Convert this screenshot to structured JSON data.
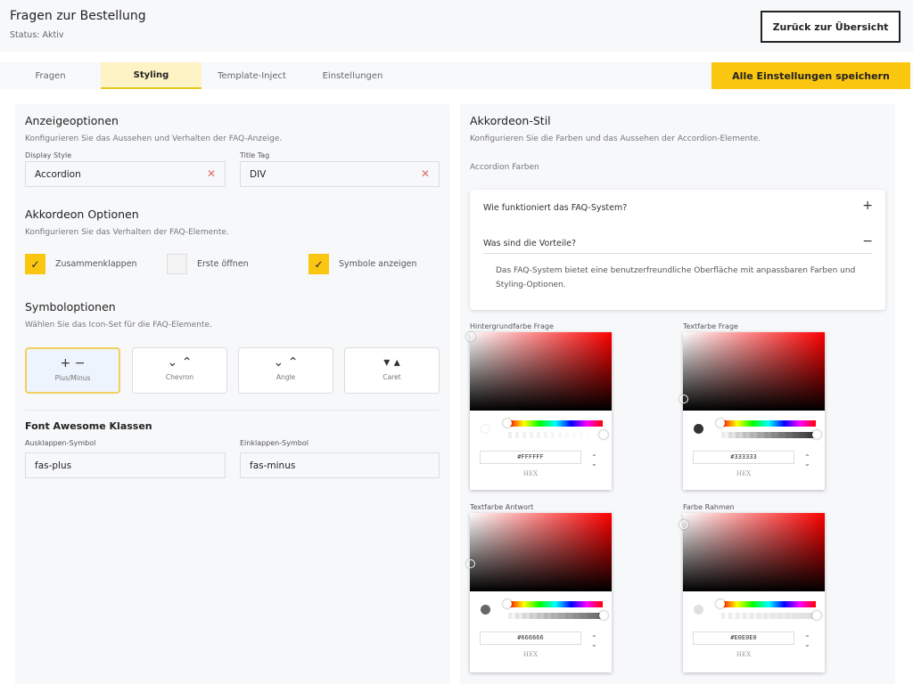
{
  "header": {
    "title": "Fragen zur Bestellung",
    "status": "Status: Aktiv",
    "back_label": "Zurück zur Übersicht"
  },
  "tabs": [
    {
      "label": "Fragen"
    },
    {
      "label": "Styling",
      "active": true
    },
    {
      "label": "Template-Inject"
    },
    {
      "label": "Einstellungen"
    }
  ],
  "save_label": "Alle Einstellungen speichern",
  "accent": "#FBC60F",
  "display": {
    "title": "Anzeigeoptionen",
    "desc": "Konfigurieren Sie das Aussehen und Verhalten der FAQ-Anzeige.",
    "style_label": "Display Style",
    "style_value": "Accordion",
    "tag_label": "Title Tag",
    "tag_value": "DIV"
  },
  "accordion_opts": {
    "title": "Akkordeon Optionen",
    "desc": "Konfigurieren Sie das Verhalten der FAQ-Elemente.",
    "items": [
      {
        "label": "Zusammenklappen",
        "checked": true
      },
      {
        "label": "Erste öffnen",
        "checked": false
      },
      {
        "label": "Symbole anzeigen",
        "checked": true
      }
    ]
  },
  "symbols": {
    "title": "Symboloptionen",
    "desc": "Wählen Sie das Icon-Set für die FAQ-Elemente.",
    "sets": [
      {
        "glyph": "+ −",
        "name": "Plus/Minus",
        "selected": true
      },
      {
        "glyph": "⌄ ⌃",
        "name": "Chevron"
      },
      {
        "glyph": "⌄ ⌃",
        "name": "Angle"
      },
      {
        "glyph": "▾ ▴",
        "name": "Caret"
      }
    ]
  },
  "fa": {
    "title": "Font Awesome Klassen",
    "expand_label": "Ausklappen-Symbol",
    "expand_value": "fas-plus",
    "collapse_label": "Einklappen-Symbol",
    "collapse_value": "fas-minus"
  },
  "style": {
    "title": "Akkordeon-Stil",
    "desc": "Konfigurieren Sie die Farben und das Aussehen der Accordion-Elemente.",
    "colors_label": "Accordion Farben",
    "preview": {
      "q1": "Wie funktioniert das FAQ-System?",
      "q2": "Was sind die Vorteile?",
      "answer": "Das FAQ-System bietet eine benutzerfreundliche Oberfläche mit anpassbaren Farben und Styling-Optionen."
    },
    "pickers": [
      {
        "label": "Hintergrundfarbe Frage",
        "hex": "#FFFFFF",
        "mode": "HEX"
      },
      {
        "label": "Textfarbe Frage",
        "hex": "#333333",
        "mode": "HEX"
      },
      {
        "label": "Textfarbe Antwort",
        "hex": "#666666",
        "mode": "HEX"
      },
      {
        "label": "Farbe Rahmen",
        "hex": "#E0E0E0",
        "mode": "HEX"
      }
    ]
  }
}
